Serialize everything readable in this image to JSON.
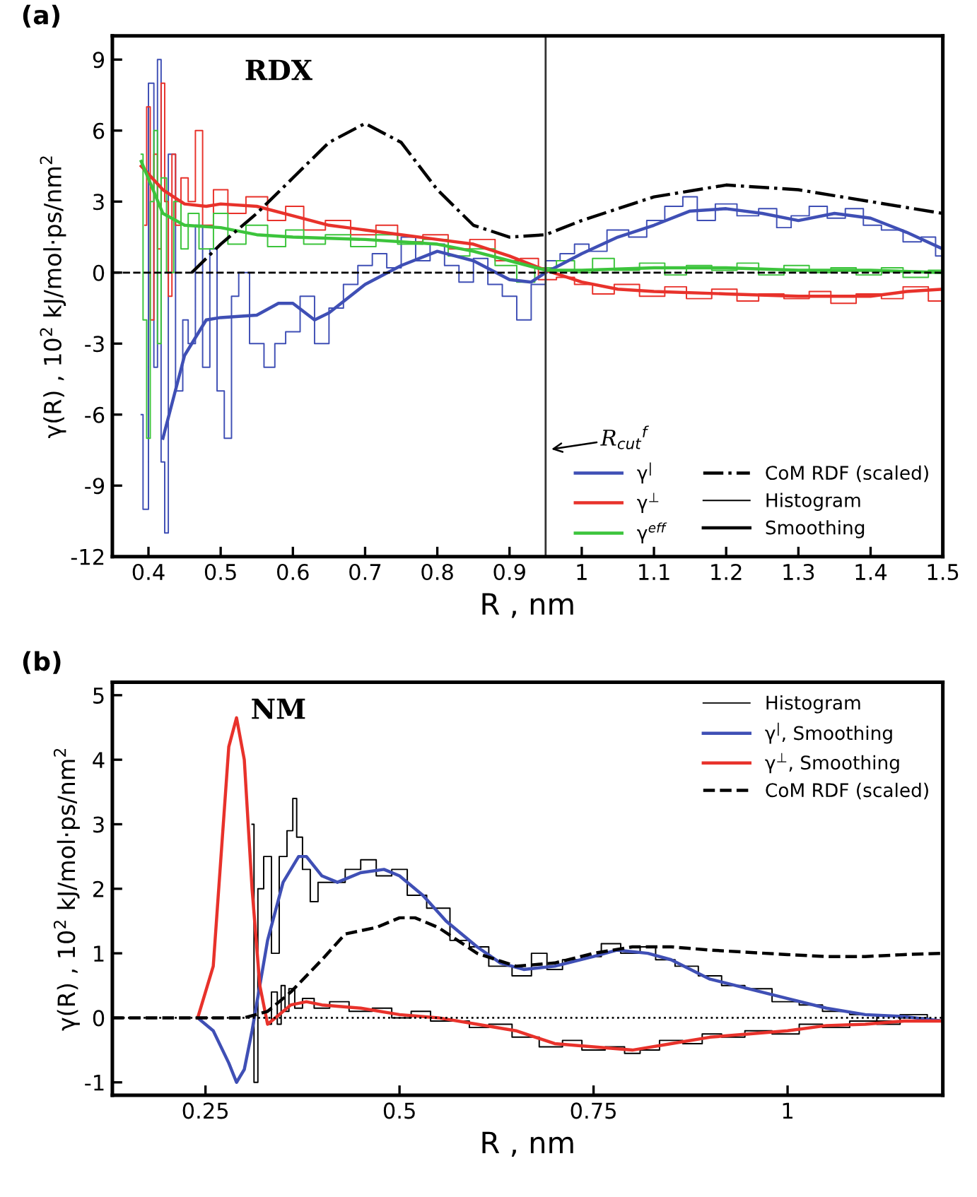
{
  "chart_data": [
    {
      "type": "line",
      "title": "(a)",
      "xlabel": "R , nm",
      "ylabel": "γ(R) , 10$^{2}$ kJ/mol·ps/nm$^{2}$",
      "xlim": [
        0.35,
        1.5
      ],
      "ylim": [
        -12,
        10
      ],
      "xticks": [
        0.4,
        0.5,
        0.6,
        0.7,
        0.8,
        0.9,
        1,
        1.1,
        1.2,
        1.3,
        1.4,
        1.5
      ],
      "yticks": [
        -12,
        -9,
        -6,
        -3,
        0,
        3,
        6,
        9
      ],
      "legend": "bottom right",
      "annotations": [
        "RDX",
        {
          "text": "R$_{cut}$$^{f}$",
          "x": 0.95,
          "y": -7.5
        }
      ],
      "ref_lines": [
        {
          "axis": "y",
          "value": 0,
          "color": "#000000",
          "line_style": "dashed"
        },
        {
          "axis": "x",
          "value": 0.95,
          "color": "#333333",
          "line_style": "solid"
        }
      ],
      "series": [
        {
          "type": "step",
          "color": "#3f4fb5",
          "x": [
            0.39,
            0.395,
            0.405,
            0.41,
            0.415,
            0.42,
            0.425,
            0.43,
            0.445,
            0.45,
            0.46,
            0.47,
            0.48,
            0.49,
            0.5,
            0.51,
            0.52,
            0.53,
            0.55,
            0.57,
            0.58,
            0.6,
            0.62,
            0.64,
            0.66,
            0.68,
            0.7,
            0.72,
            0.74,
            0.76,
            0.78,
            0.8,
            0.82,
            0.84,
            0.86,
            0.88,
            0.9,
            0.92,
            0.94,
            0.96,
            0.98,
            1.0,
            1.02,
            1.05,
            1.08,
            1.1,
            1.13,
            1.15,
            1.17,
            1.2,
            1.23,
            1.26,
            1.28,
            1.3,
            1.33,
            1.35,
            1.38,
            1.4,
            1.43,
            1.46,
            1.48,
            1.5
          ],
          "values": [
            -6,
            -10,
            8,
            -4,
            9,
            -8,
            -11,
            5,
            -5,
            -2,
            -3,
            2,
            -4,
            1,
            -5,
            -7,
            -1,
            0,
            -3,
            -4,
            -3,
            -2.5,
            -1.0,
            -3.0,
            -1.5,
            -0.5,
            0.3,
            0.8,
            0.2,
            1.5,
            0.5,
            1.2,
            0.3,
            -0.4,
            0.6,
            -0.5,
            -1.0,
            -2.0,
            -0.5,
            0.5,
            0.8,
            1.2,
            0.9,
            1.8,
            1.5,
            2.2,
            2.8,
            3.2,
            2.2,
            2.9,
            2.4,
            2.7,
            1.9,
            2.4,
            2.8,
            2.3,
            2.7,
            2.0,
            1.8,
            1.3,
            1.5,
            0.7
          ]
        },
        {
          "type": "step",
          "color": "#e8322b",
          "x": [
            0.395,
            0.4,
            0.405,
            0.41,
            0.415,
            0.42,
            0.425,
            0.43,
            0.435,
            0.44,
            0.45,
            0.46,
            0.47,
            0.48,
            0.5,
            0.52,
            0.55,
            0.58,
            0.6,
            0.63,
            0.66,
            0.7,
            0.73,
            0.76,
            0.8,
            0.83,
            0.86,
            0.9,
            0.93,
            0.95,
            0.98,
            1.0,
            1.03,
            1.06,
            1.1,
            1.13,
            1.16,
            1.2,
            1.23,
            1.26,
            1.3,
            1.33,
            1.36,
            1.4,
            1.43,
            1.46,
            1.5
          ],
          "values": [
            2,
            7,
            -2,
            5,
            1,
            8,
            3,
            -1,
            5,
            2,
            4,
            3,
            6,
            2,
            3.5,
            2.5,
            3.2,
            2.2,
            2.8,
            1.8,
            2.2,
            1.6,
            2.0,
            1.3,
            1.6,
            1.0,
            1.4,
            0.5,
            0.6,
            -0.3,
            -0.2,
            -0.5,
            -0.9,
            -0.5,
            -1.0,
            -0.6,
            -1.1,
            -0.7,
            -1.2,
            -0.9,
            -1.1,
            -0.8,
            -1.3,
            -0.9,
            -1.1,
            -0.6,
            -1.2
          ]
        },
        {
          "type": "step",
          "color": "#3cc43c",
          "x": [
            0.39,
            0.395,
            0.4,
            0.405,
            0.41,
            0.415,
            0.42,
            0.43,
            0.44,
            0.45,
            0.46,
            0.48,
            0.5,
            0.52,
            0.55,
            0.58,
            0.6,
            0.63,
            0.66,
            0.7,
            0.73,
            0.76,
            0.8,
            0.83,
            0.86,
            0.9,
            0.92,
            0.95,
            0.98,
            1.0,
            1.03,
            1.06,
            1.1,
            1.13,
            1.16,
            1.2,
            1.23,
            1.26,
            1.3,
            1.33,
            1.36,
            1.4,
            1.43,
            1.46,
            1.5
          ],
          "values": [
            5,
            -2,
            -7,
            3,
            6,
            -3,
            4,
            0,
            3,
            1,
            2.5,
            1.0,
            2.5,
            1.2,
            2.0,
            1.1,
            1.8,
            1.2,
            1.6,
            1.1,
            1.6,
            1.2,
            1.4,
            0.7,
            1.0,
            0.3,
            -0.4,
            0.2,
            0.5,
            0.0,
            0.6,
            0.1,
            0.4,
            -0.1,
            0.3,
            0.1,
            0.4,
            -0.1,
            0.3,
            0.0,
            0.2,
            -0.1,
            0.2,
            -0.2,
            0.1
          ]
        },
        {
          "name": "γ$^{|}$",
          "color": "#3f4fb5",
          "x": [
            0.42,
            0.45,
            0.48,
            0.5,
            0.55,
            0.58,
            0.6,
            0.63,
            0.65,
            0.7,
            0.75,
            0.8,
            0.85,
            0.9,
            0.93,
            0.95,
            1.0,
            1.05,
            1.1,
            1.15,
            1.2,
            1.25,
            1.3,
            1.35,
            1.4,
            1.45,
            1.5
          ],
          "values": [
            -7,
            -3.5,
            -2,
            -1.9,
            -1.8,
            -1.3,
            -1.3,
            -2.0,
            -1.7,
            -0.5,
            0.3,
            0.9,
            0.5,
            -0.3,
            -0.4,
            0,
            0.8,
            1.5,
            2.0,
            2.6,
            2.7,
            2.5,
            2.2,
            2.5,
            2.3,
            1.7,
            1.0
          ]
        },
        {
          "name": "γ$^{⊥}$",
          "color": "#e8322b",
          "x": [
            0.39,
            0.42,
            0.45,
            0.48,
            0.5,
            0.55,
            0.6,
            0.65,
            0.7,
            0.75,
            0.8,
            0.85,
            0.9,
            0.95,
            1.0,
            1.05,
            1.1,
            1.2,
            1.3,
            1.4,
            1.45,
            1.5
          ],
          "values": [
            4.5,
            3.5,
            2.9,
            2.8,
            2.9,
            2.8,
            2.4,
            2.0,
            1.8,
            1.6,
            1.4,
            1.2,
            0.7,
            0.1,
            -0.4,
            -0.7,
            -0.8,
            -0.9,
            -1.0,
            -1.0,
            -0.8,
            -0.7
          ]
        },
        {
          "name": "γ$^{eff}$",
          "color": "#3cc43c",
          "x": [
            0.39,
            0.42,
            0.45,
            0.5,
            0.55,
            0.6,
            0.7,
            0.8,
            0.85,
            0.9,
            0.95,
            1.0,
            1.1,
            1.2,
            1.3,
            1.4,
            1.5
          ],
          "values": [
            4.7,
            2.5,
            2.0,
            1.9,
            1.6,
            1.5,
            1.4,
            1.2,
            0.9,
            0.5,
            0.1,
            0.1,
            0.2,
            0.2,
            0.1,
            0.1,
            0.0
          ]
        },
        {
          "name": "CoM RDF (scaled)",
          "color": "#000000",
          "line_style": "dashdot",
          "x": [
            0.46,
            0.5,
            0.55,
            0.6,
            0.65,
            0.7,
            0.75,
            0.8,
            0.85,
            0.9,
            0.95,
            1.0,
            1.1,
            1.2,
            1.3,
            1.4,
            1.5
          ],
          "values": [
            0,
            1.2,
            2.5,
            4.0,
            5.5,
            6.3,
            5.5,
            3.5,
            2.0,
            1.5,
            1.6,
            2.2,
            3.2,
            3.7,
            3.5,
            3.0,
            2.5
          ]
        },
        {
          "type": "step",
          "name": "Histogram",
          "color": "#000000"
        },
        {
          "name": "Smoothing",
          "color": "#000000"
        }
      ]
    },
    {
      "type": "line",
      "title": "(b)",
      "xlabel": "R , nm",
      "ylabel": "γ(R) , 10$^{2}$ kJ/mol·ps/nm$^{2}$",
      "xlim": [
        0.13,
        1.2
      ],
      "ylim": [
        -1.2,
        5.2
      ],
      "xticks": [
        0.25,
        0.5,
        0.75,
        1
      ],
      "yticks": [
        -1,
        0,
        1,
        2,
        3,
        4,
        5
      ],
      "legend": "top right",
      "annotations": [
        "NM"
      ],
      "ref_lines": [
        {
          "axis": "y",
          "value": 0,
          "color": "#000000",
          "line_style": "dotted"
        }
      ],
      "series": [
        {
          "type": "step",
          "name": "Histogram",
          "color": "#000000",
          "x": [
            0.31,
            0.315,
            0.32,
            0.33,
            0.34,
            0.35,
            0.36,
            0.365,
            0.37,
            0.38,
            0.39,
            0.4,
            0.42,
            0.44,
            0.46,
            0.48,
            0.5,
            0.52,
            0.55,
            0.58,
            0.6,
            0.63,
            0.66,
            0.68,
            0.7,
            0.72,
            0.75,
            0.77,
            0.8,
            0.82,
            0.84,
            0.87,
            0.9,
            0.93,
            0.96,
            1.0,
            1.03,
            1.06,
            1.1,
            1.13,
            1.16,
            1.2
          ],
          "values": [
            3,
            -1,
            2,
            2.5,
            1.0,
            2.5,
            2.9,
            3.4,
            2.8,
            2.3,
            1.8,
            2.1,
            2.1,
            2.3,
            2.45,
            2.2,
            2.3,
            1.9,
            1.7,
            1.2,
            1.1,
            0.8,
            0.65,
            1.0,
            0.75,
            0.9,
            0.95,
            1.15,
            1.0,
            1.1,
            0.9,
            0.8,
            0.65,
            0.5,
            0.45,
            0.25,
            0.2,
            0.1,
            0.05,
            -0.05,
            0.05,
            -0.05
          ]
        },
        {
          "type": "step",
          "color": "#000000",
          "x": [
            0.33,
            0.34,
            0.345,
            0.35,
            0.355,
            0.36,
            0.37,
            0.38,
            0.4,
            0.42,
            0.45,
            0.48,
            0.5,
            0.53,
            0.55,
            0.58,
            0.6,
            0.63,
            0.66,
            0.7,
            0.72,
            0.75,
            0.78,
            0.8,
            0.82,
            0.85,
            0.88,
            0.9,
            0.93,
            0.96,
            1.0,
            1.03,
            1.06,
            1.1,
            1.13,
            1.16,
            1.2
          ],
          "values": [
            -0.1,
            0.4,
            -0.1,
            0.5,
            0.1,
            0.45,
            0.15,
            0.3,
            0.15,
            0.25,
            0.1,
            0.15,
            0.0,
            0.1,
            -0.05,
            -0.05,
            -0.15,
            -0.1,
            -0.3,
            -0.45,
            -0.35,
            -0.5,
            -0.45,
            -0.55,
            -0.5,
            -0.35,
            -0.4,
            -0.25,
            -0.3,
            -0.2,
            -0.25,
            -0.1,
            -0.15,
            -0.05,
            -0.1,
            0.0,
            -0.05
          ]
        },
        {
          "name": "γ$^{|}$, Smoothing",
          "color": "#3f4fb5",
          "x": [
            0.24,
            0.26,
            0.28,
            0.29,
            0.3,
            0.31,
            0.32,
            0.33,
            0.35,
            0.37,
            0.38,
            0.4,
            0.42,
            0.45,
            0.48,
            0.5,
            0.53,
            0.56,
            0.6,
            0.63,
            0.66,
            0.7,
            0.75,
            0.78,
            0.82,
            0.85,
            0.9,
            0.95,
            1.0,
            1.05,
            1.1,
            1.15,
            1.2
          ],
          "values": [
            0,
            -0.2,
            -0.7,
            -1.0,
            -0.8,
            -0.2,
            0.5,
            1.2,
            2.1,
            2.5,
            2.5,
            2.2,
            2.1,
            2.25,
            2.3,
            2.2,
            1.9,
            1.5,
            1.1,
            0.85,
            0.75,
            0.8,
            0.95,
            1.05,
            1.0,
            0.9,
            0.6,
            0.45,
            0.3,
            0.15,
            0.05,
            0.02,
            -0.05
          ]
        },
        {
          "name": "γ$^{⊥}$, Smoothing",
          "color": "#e8322b",
          "x": [
            0.24,
            0.26,
            0.27,
            0.28,
            0.29,
            0.3,
            0.31,
            0.32,
            0.33,
            0.34,
            0.36,
            0.38,
            0.4,
            0.45,
            0.5,
            0.55,
            0.6,
            0.65,
            0.7,
            0.75,
            0.8,
            0.85,
            0.9,
            0.95,
            1.0,
            1.05,
            1.1,
            1.15,
            1.2
          ],
          "values": [
            0,
            0.8,
            2.5,
            4.2,
            4.65,
            4.0,
            2.0,
            0.5,
            -0.1,
            0.0,
            0.2,
            0.25,
            0.2,
            0.15,
            0.05,
            0.0,
            -0.1,
            -0.2,
            -0.4,
            -0.45,
            -0.5,
            -0.4,
            -0.3,
            -0.25,
            -0.2,
            -0.12,
            -0.1,
            -0.05,
            -0.05
          ]
        },
        {
          "name": "CoM RDF (scaled)",
          "color": "#000000",
          "line_style": "dashed",
          "x": [
            0.13,
            0.3,
            0.33,
            0.36,
            0.4,
            0.43,
            0.47,
            0.5,
            0.52,
            0.55,
            0.6,
            0.65,
            0.7,
            0.75,
            0.8,
            0.85,
            0.9,
            1.0,
            1.05,
            1.1,
            1.15,
            1.2
          ],
          "values": [
            0,
            0,
            0.1,
            0.4,
            0.9,
            1.3,
            1.4,
            1.55,
            1.55,
            1.4,
            1.0,
            0.8,
            0.85,
            1.0,
            1.1,
            1.1,
            1.05,
            0.98,
            0.95,
            0.95,
            0.98,
            1.0
          ]
        }
      ]
    }
  ]
}
